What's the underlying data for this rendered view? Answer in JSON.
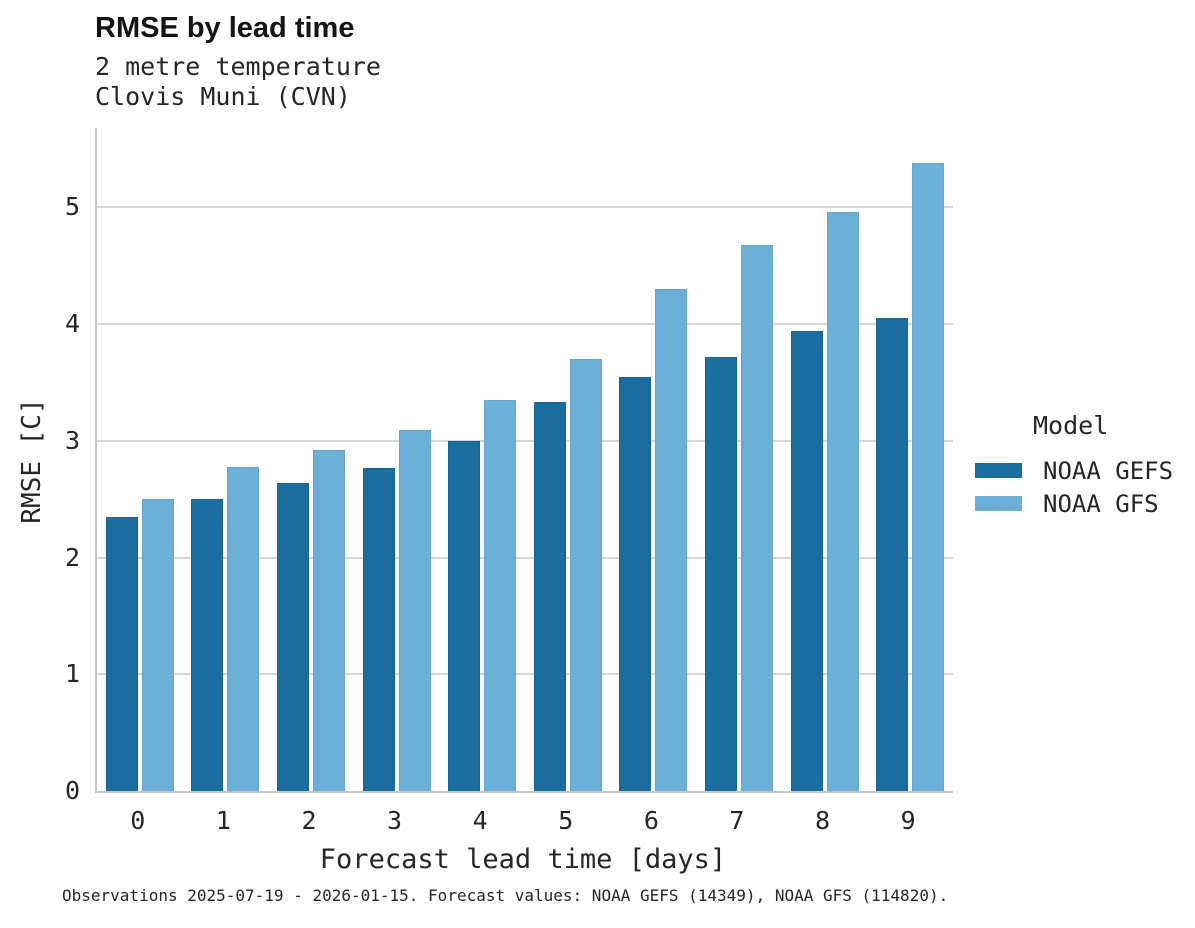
{
  "header": {
    "title": "RMSE by lead time",
    "subtitle_variable": "2 metre temperature",
    "subtitle_station": "Clovis Muni (CVN)"
  },
  "legend": {
    "title": "Model"
  },
  "footer": {
    "caption": "Observations 2025-07-19 - 2026-01-15. Forecast values: NOAA GEFS (14349), NOAA GFS (114820)."
  },
  "colors": {
    "gefs_dark_blue": "#1a6d9e",
    "gfs_light_blue": "#6cb0d8",
    "gridline": "#d7d7d7",
    "axis_spine": "#c6c6c6",
    "text": "#262626"
  },
  "chart_data": {
    "type": "bar",
    "title": "RMSE by lead time",
    "subtitle": [
      "2 metre temperature",
      "Clovis Muni (CVN)"
    ],
    "xlabel": "Forecast lead time [days]",
    "ylabel": "RMSE [C]",
    "categories": [
      "0",
      "1",
      "2",
      "3",
      "4",
      "5",
      "6",
      "7",
      "8",
      "9"
    ],
    "series": [
      {
        "name": "NOAA GEFS",
        "color": "#1a6d9e",
        "values": [
          2.35,
          2.5,
          2.64,
          2.77,
          3.0,
          3.33,
          3.55,
          3.72,
          3.94,
          4.05
        ]
      },
      {
        "name": "NOAA GFS",
        "color": "#6cb0d8",
        "values": [
          2.5,
          2.78,
          2.92,
          3.09,
          3.35,
          3.7,
          4.3,
          4.68,
          4.96,
          5.38
        ]
      }
    ],
    "ylim": [
      0,
      5.68
    ],
    "yticks": [
      0,
      1,
      2,
      3,
      4,
      5
    ],
    "grid": true,
    "legend_position": "right",
    "legend_title": "Model",
    "caption": "Observations 2025-07-19 - 2026-01-15. Forecast values: NOAA GEFS (14349), NOAA GFS (114820)."
  }
}
